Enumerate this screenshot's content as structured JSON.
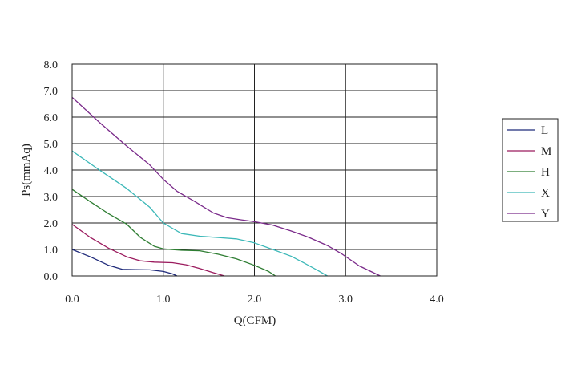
{
  "chart_data": {
    "type": "line",
    "title": "",
    "xlabel": "Q(CFM)",
    "ylabel": "Ps(mmAq)",
    "xlim": [
      0,
      4.0
    ],
    "ylim": [
      0,
      8.0
    ],
    "x_ticks": [
      "0.0",
      "1.0",
      "2.0",
      "3.0",
      "4.0"
    ],
    "y_ticks": [
      "0.0",
      "1.0",
      "2.0",
      "3.0",
      "4.0",
      "5.0",
      "6.0",
      "7.0",
      "8.0"
    ],
    "grid": true,
    "legend_position": "right",
    "series": [
      {
        "name": "L",
        "color": "#1f2a7a",
        "points": [
          [
            0,
            1.0
          ],
          [
            0.2,
            0.72
          ],
          [
            0.4,
            0.4
          ],
          [
            0.55,
            0.25
          ],
          [
            0.7,
            0.24
          ],
          [
            0.85,
            0.23
          ],
          [
            1.0,
            0.17
          ],
          [
            1.1,
            0.08
          ],
          [
            1.15,
            0.0
          ]
        ]
      },
      {
        "name": "M",
        "color": "#9b1b5e",
        "points": [
          [
            0,
            1.95
          ],
          [
            0.2,
            1.45
          ],
          [
            0.4,
            1.05
          ],
          [
            0.6,
            0.72
          ],
          [
            0.75,
            0.57
          ],
          [
            0.9,
            0.52
          ],
          [
            1.1,
            0.5
          ],
          [
            1.25,
            0.42
          ],
          [
            1.4,
            0.28
          ],
          [
            1.55,
            0.12
          ],
          [
            1.67,
            0.0
          ]
        ]
      },
      {
        "name": "H",
        "color": "#2e7d32",
        "points": [
          [
            0,
            3.27
          ],
          [
            0.2,
            2.8
          ],
          [
            0.4,
            2.35
          ],
          [
            0.6,
            1.95
          ],
          [
            0.75,
            1.45
          ],
          [
            0.9,
            1.12
          ],
          [
            1.0,
            1.02
          ],
          [
            1.2,
            0.97
          ],
          [
            1.4,
            0.95
          ],
          [
            1.6,
            0.82
          ],
          [
            1.8,
            0.65
          ],
          [
            2.0,
            0.4
          ],
          [
            2.15,
            0.18
          ],
          [
            2.23,
            0.0
          ]
        ]
      },
      {
        "name": "X",
        "color": "#3cb8b8",
        "points": [
          [
            0,
            4.72
          ],
          [
            0.3,
            4.0
          ],
          [
            0.6,
            3.3
          ],
          [
            0.85,
            2.6
          ],
          [
            1.0,
            2.0
          ],
          [
            1.2,
            1.6
          ],
          [
            1.4,
            1.5
          ],
          [
            1.6,
            1.45
          ],
          [
            1.8,
            1.4
          ],
          [
            2.0,
            1.25
          ],
          [
            2.2,
            1.0
          ],
          [
            2.4,
            0.75
          ],
          [
            2.55,
            0.48
          ],
          [
            2.7,
            0.2
          ],
          [
            2.8,
            0.0
          ]
        ]
      },
      {
        "name": "Y",
        "color": "#7a2a8a",
        "points": [
          [
            0,
            6.75
          ],
          [
            0.3,
            5.8
          ],
          [
            0.6,
            4.9
          ],
          [
            0.85,
            4.2
          ],
          [
            1.0,
            3.65
          ],
          [
            1.15,
            3.2
          ],
          [
            1.35,
            2.8
          ],
          [
            1.55,
            2.38
          ],
          [
            1.7,
            2.2
          ],
          [
            1.85,
            2.12
          ],
          [
            2.0,
            2.05
          ],
          [
            2.2,
            1.92
          ],
          [
            2.4,
            1.7
          ],
          [
            2.6,
            1.45
          ],
          [
            2.8,
            1.15
          ],
          [
            2.95,
            0.85
          ],
          [
            3.15,
            0.38
          ],
          [
            3.38,
            0.0
          ]
        ]
      }
    ]
  }
}
